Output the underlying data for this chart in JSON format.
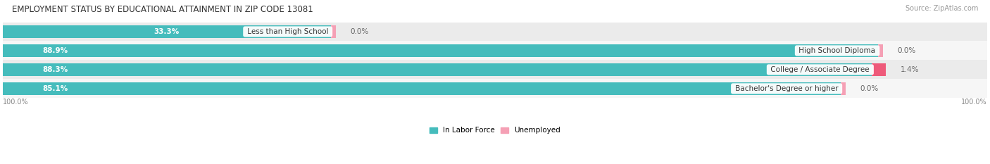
{
  "title": "EMPLOYMENT STATUS BY EDUCATIONAL ATTAINMENT IN ZIP CODE 13081",
  "source": "Source: ZipAtlas.com",
  "categories": [
    "Less than High School",
    "High School Diploma",
    "College / Associate Degree",
    "Bachelor's Degree or higher"
  ],
  "in_labor_force": [
    33.3,
    88.9,
    88.3,
    85.1
  ],
  "unemployed": [
    0.0,
    0.0,
    1.4,
    0.0
  ],
  "labor_color": "#45BCBC",
  "unemployed_color_low": "#F5A0B5",
  "unemployed_color_high": "#EE6080",
  "row_bg_color_odd": "#EEEEEE",
  "row_bg_color_even": "#F8F8F8",
  "label_bg_color": "#FFFFFF",
  "axis_label_left": "100.0%",
  "axis_label_right": "100.0%",
  "legend_items": [
    "In Labor Force",
    "Unemployed"
  ],
  "title_fontsize": 8.5,
  "source_fontsize": 7,
  "bar_label_fontsize": 7.5,
  "category_fontsize": 7.5,
  "axis_fontsize": 7,
  "legend_fontsize": 7.5,
  "fig_width": 14.06,
  "fig_height": 2.33,
  "max_pct": 100.0,
  "unemp_colors": [
    "#F5A0B5",
    "#F5A0B5",
    "#EE5A7A",
    "#F5A0B5"
  ]
}
